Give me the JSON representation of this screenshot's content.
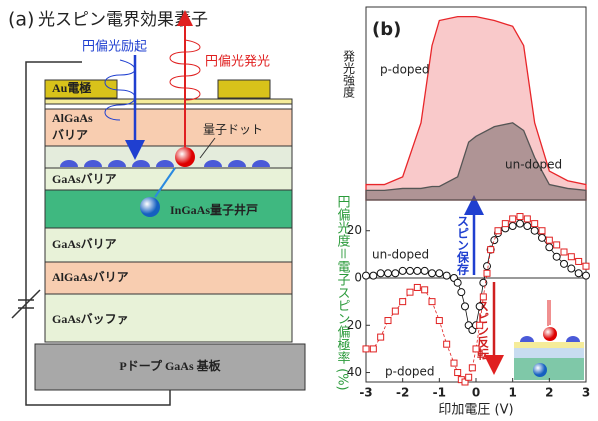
{
  "diagram": {
    "panel_label": "(a)",
    "title": "光スピン電界効果素子",
    "excitation": "円偏光励起",
    "emission": "円偏光発光",
    "au": "Au電極",
    "algaas_top": [
      "AlGaAs",
      "バリア"
    ],
    "dots": "量子ドット",
    "gaas_top": "GaAsバリア",
    "well": "InGaAs量子井戸",
    "gaas_mid": "GaAsバリア",
    "algaas_mid": "AlGaAsバリア",
    "buffer": "GaAsバッファ",
    "substrate": "Pドープ GaAs 基板"
  },
  "chart_data": [
    {
      "type": "area",
      "panel_label": "(b)",
      "ylabel": "発光強度",
      "xlim": [
        -3,
        3
      ],
      "ylim": [
        0,
        1
      ],
      "x": [
        -3,
        -2.5,
        -2,
        -1.5,
        -1.2,
        -1,
        -0.5,
        -0.2,
        0,
        0.5,
        1,
        1.3,
        1.6,
        2,
        2.5,
        3
      ],
      "series": [
        {
          "name": "p-doped",
          "color": "#e8262a",
          "values": [
            0.08,
            0.08,
            0.12,
            0.4,
            0.8,
            0.93,
            0.95,
            0.95,
            0.95,
            0.93,
            0.9,
            0.8,
            0.4,
            0.15,
            0.1,
            0.08
          ]
        },
        {
          "name": "un-doped",
          "color": "#555555",
          "values": [
            0.05,
            0.05,
            0.06,
            0.06,
            0.07,
            0.07,
            0.12,
            0.3,
            0.33,
            0.38,
            0.4,
            0.36,
            0.22,
            0.08,
            0.06,
            0.05
          ]
        }
      ]
    },
    {
      "type": "line-scatter",
      "xlabel": "印加電圧 (V)",
      "ylabel": "円偏光度＝電子スピン偏極率 (%)",
      "xlim": [
        -3,
        3
      ],
      "ylim": [
        -44,
        33
      ],
      "xticks": [
        -3,
        -2,
        -1,
        0,
        1,
        2,
        3
      ],
      "yticks": [
        20,
        0,
        {
          "value": -20,
          "label": "20"
        },
        {
          "value": -40,
          "label": "40"
        }
      ],
      "annotations": [
        "スピン保存",
        "スピン反転"
      ],
      "series": [
        {
          "name": "un-doped",
          "color": "#111111",
          "marker": "circle",
          "x": [
            -3,
            -2.8,
            -2.6,
            -2.4,
            -2.2,
            -2,
            -1.8,
            -1.6,
            -1.4,
            -1.2,
            -1,
            -0.8,
            -0.6,
            -0.5,
            -0.4,
            -0.3,
            -0.2,
            -0.1,
            0,
            0.1,
            0.2,
            0.3,
            0.4,
            0.5,
            0.6,
            0.8,
            1,
            1.2,
            1.4,
            1.6,
            1.8,
            2,
            2.2,
            2.4,
            2.6,
            2.8,
            3
          ],
          "values": [
            1,
            1,
            2,
            2,
            2,
            3,
            3,
            3,
            3,
            2,
            2,
            1,
            0,
            -2,
            -6,
            -12,
            -20,
            -22,
            -20,
            -12,
            -2,
            5,
            12,
            16,
            19,
            21,
            22,
            23,
            22,
            20,
            17,
            13,
            9,
            6,
            4,
            2,
            1
          ]
        },
        {
          "name": "p-doped",
          "color": "#e02020",
          "marker": "square",
          "x": [
            -3,
            -2.8,
            -2.6,
            -2.4,
            -2.2,
            -2,
            -1.8,
            -1.6,
            -1.4,
            -1.2,
            -1,
            -0.8,
            -0.6,
            -0.5,
            -0.4,
            -0.3,
            -0.2,
            -0.1,
            0,
            0.1,
            0.2,
            0.3,
            0.4,
            0.6,
            0.8,
            1,
            1.2,
            1.4,
            1.6,
            1.8,
            2,
            2.2,
            2.4,
            2.6,
            2.8,
            3
          ],
          "values": [
            -30,
            -30,
            -25,
            -18,
            -14,
            -10,
            -6,
            -4,
            -5,
            -10,
            -18,
            -28,
            -36,
            -40,
            -43,
            -44,
            -42,
            -38,
            -30,
            -20,
            -8,
            2,
            12,
            20,
            23,
            25,
            26,
            25,
            23,
            20,
            16,
            14,
            11,
            9,
            7,
            5
          ]
        }
      ]
    }
  ]
}
